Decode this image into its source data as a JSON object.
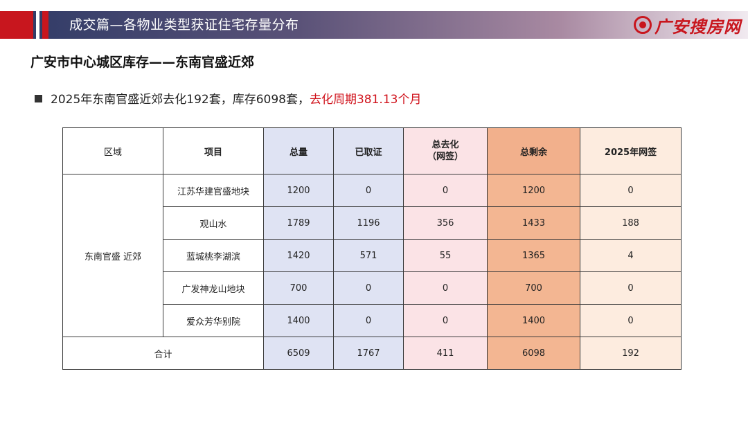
{
  "header": {
    "title": "成交篇—各物业类型获证住宅存量分布",
    "logo_text": "广安搜房网"
  },
  "section_title": "广安市中心城区库存——东南官盛近郊",
  "summary": {
    "text": "2025年东南官盛近郊去化192套，库存6098套，",
    "highlight": "去化周期381.13个月"
  },
  "table": {
    "headers": {
      "region": "区域",
      "project": "项目",
      "total": "总量",
      "certified": "已取证",
      "sold_line1": "总去化",
      "sold_line2": "（网签）",
      "remaining": "总剩余",
      "signed_2025": "2025年网签"
    },
    "region_name": "东南官盛 近郊",
    "rows": [
      {
        "project": "江苏华建官盛地块",
        "total": "1200",
        "certified": "0",
        "sold": "0",
        "remaining": "1200",
        "signed_2025": "0"
      },
      {
        "project": "观山水",
        "total": "1789",
        "certified": "1196",
        "sold": "356",
        "remaining": "1433",
        "signed_2025": "188"
      },
      {
        "project": "蓝城桃李湖滨",
        "total": "1420",
        "certified": "571",
        "sold": "55",
        "remaining": "1365",
        "signed_2025": "4"
      },
      {
        "project": "广发神龙山地块",
        "total": "700",
        "certified": "0",
        "sold": "0",
        "remaining": "700",
        "signed_2025": "0"
      },
      {
        "project": "爱众芳华别院",
        "total": "1400",
        "certified": "0",
        "sold": "0",
        "remaining": "1400",
        "signed_2025": "0"
      }
    ],
    "total_row": {
      "label": "合计",
      "total": "6509",
      "certified": "1767",
      "sold": "411",
      "remaining": "6098",
      "signed_2025": "192"
    }
  }
}
